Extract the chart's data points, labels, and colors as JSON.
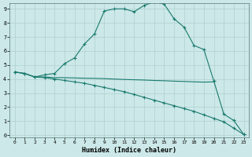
{
  "line1_x": [
    0,
    1,
    2,
    3,
    4,
    5,
    6,
    7,
    8,
    9,
    10,
    11,
    12,
    13,
    14,
    15,
    16,
    17,
    18,
    19,
    20,
    21,
    22,
    23
  ],
  "line1_y": [
    4.5,
    4.4,
    4.15,
    4.3,
    4.4,
    5.1,
    5.5,
    6.5,
    7.2,
    8.85,
    9.0,
    9.0,
    8.8,
    9.25,
    9.5,
    9.35,
    8.3,
    7.7,
    6.4,
    6.1,
    3.85,
    1.5,
    1.05,
    0.05
  ],
  "line2_x": [
    0,
    1,
    2,
    3,
    4,
    5,
    6,
    7,
    8,
    9,
    10,
    11,
    12,
    13,
    14,
    15,
    16,
    17,
    18,
    19,
    20
  ],
  "line2_y": [
    4.5,
    4.4,
    4.15,
    4.15,
    4.1,
    4.1,
    4.08,
    4.06,
    4.05,
    4.03,
    4.0,
    3.97,
    3.95,
    3.93,
    3.9,
    3.88,
    3.85,
    3.83,
    3.8,
    3.78,
    3.8
  ],
  "line3_x": [
    0,
    1,
    2,
    3,
    4,
    5,
    6,
    7,
    8,
    9,
    10,
    11,
    12,
    13,
    14,
    15,
    16,
    17,
    18,
    19,
    20,
    21,
    22,
    23
  ],
  "line3_y": [
    4.5,
    4.4,
    4.15,
    4.1,
    4.0,
    3.9,
    3.8,
    3.7,
    3.55,
    3.4,
    3.25,
    3.1,
    2.9,
    2.7,
    2.5,
    2.3,
    2.1,
    1.9,
    1.7,
    1.45,
    1.2,
    0.95,
    0.5,
    0.05
  ],
  "color": "#1a7a6e",
  "bg_color": "#cce8e8",
  "grid_color": "#b0d0d0",
  "xlabel": "Humidex (Indice chaleur)",
  "xlim": [
    0,
    23
  ],
  "ylim": [
    0,
    9
  ],
  "xticks": [
    0,
    1,
    2,
    3,
    4,
    5,
    6,
    7,
    8,
    9,
    10,
    11,
    12,
    13,
    14,
    15,
    16,
    17,
    18,
    19,
    20,
    21,
    22,
    23
  ],
  "yticks": [
    0,
    1,
    2,
    3,
    4,
    5,
    6,
    7,
    8,
    9
  ],
  "marker": "+"
}
